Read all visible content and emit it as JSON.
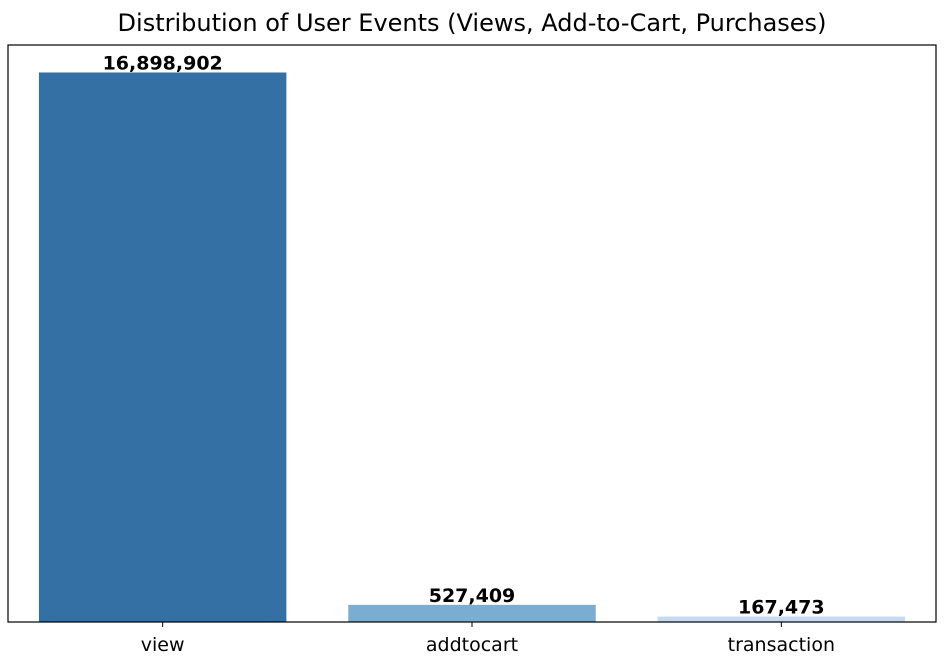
{
  "chart_data": {
    "type": "bar",
    "title": "Distribution of User Events (Views, Add-to-Cart, Purchases)",
    "xlabel": "",
    "ylabel": "",
    "categories": [
      "view",
      "addtocart",
      "transaction"
    ],
    "values": [
      16898902,
      527409,
      167473
    ],
    "value_labels": [
      "16,898,902",
      "527,409",
      "167,473"
    ],
    "colors": [
      "#3470a3",
      "#7aadcf",
      "#c6dbef"
    ],
    "ylim": [
      0,
      17743847
    ],
    "y_ticks_visible": false,
    "grid": false,
    "legend": "none"
  }
}
